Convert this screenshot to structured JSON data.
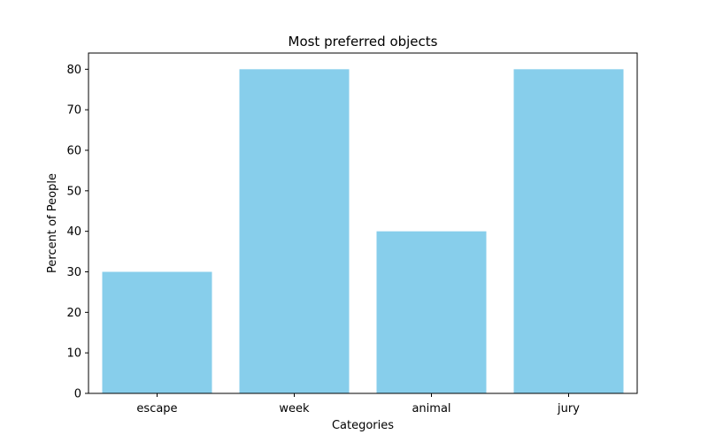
{
  "chart_data": {
    "type": "bar",
    "title": "Most preferred objects",
    "xlabel": "Categories",
    "ylabel": "Percent of People",
    "categories": [
      "escape",
      "week",
      "animal",
      "jury"
    ],
    "values": [
      30,
      80,
      40,
      80
    ],
    "ylim": [
      0,
      84
    ],
    "yticks": [
      0,
      10,
      20,
      30,
      40,
      50,
      60,
      70,
      80
    ],
    "bar_color": "#87ceeb",
    "grid": false,
    "legend": "none"
  }
}
